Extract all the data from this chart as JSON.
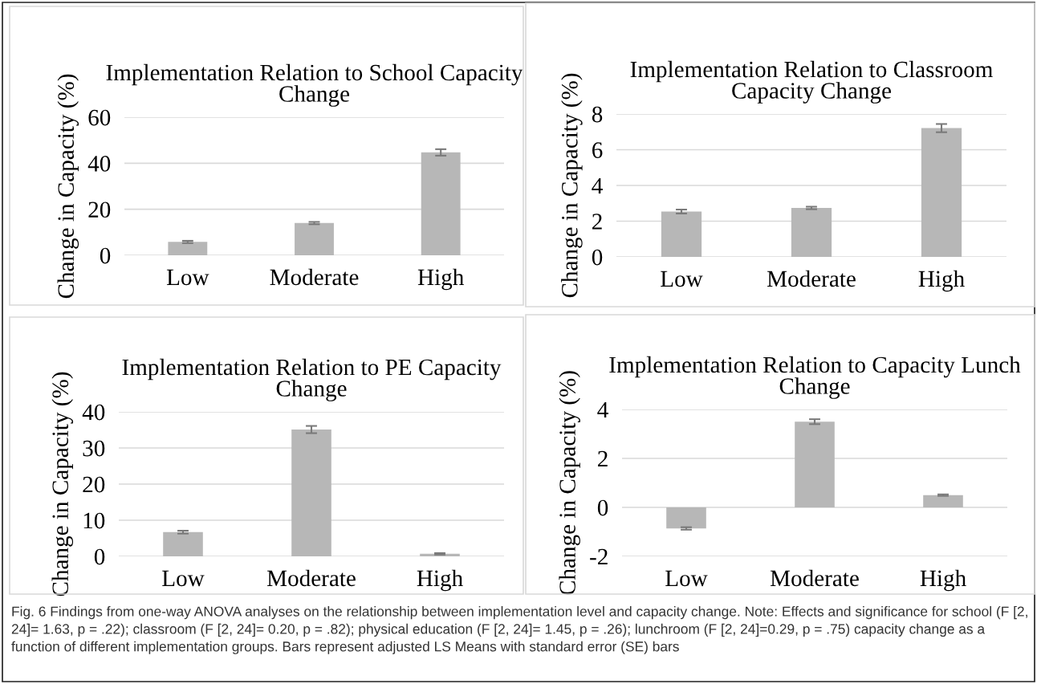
{
  "chart_data": [
    {
      "type": "bar",
      "title": "Implementation Relation to School Capacity Change",
      "ylabel": "Change in Capacity (%)",
      "categories": [
        "Low",
        "Moderate",
        "High"
      ],
      "values": [
        5.8,
        14.0,
        44.7
      ],
      "errors": [
        0.5,
        0.5,
        1.4
      ],
      "color": "#b7b7b7",
      "ylim": [
        0,
        60
      ],
      "yticks": [
        0,
        20,
        40,
        60
      ],
      "grid": "y"
    },
    {
      "type": "bar",
      "title": "Implementation Relation to Classroom Capacity Change",
      "ylabel": "Change in Capacity (%)",
      "categories": [
        "Low",
        "Moderate",
        "High"
      ],
      "values": [
        2.54,
        2.74,
        7.21
      ],
      "errors": [
        0.11,
        0.07,
        0.23
      ],
      "color": "#b7b7b7",
      "ylim": [
        0,
        8
      ],
      "yticks": [
        0,
        2,
        4,
        6,
        8
      ],
      "grid": "y"
    },
    {
      "type": "bar",
      "title": "Implementation Relation to PE Capacity Change",
      "ylabel": "Change in Capacity (%)",
      "categories": [
        "Low",
        "Moderate",
        "High"
      ],
      "values": [
        6.7,
        35.1,
        0.7
      ],
      "errors": [
        0.4,
        1.0,
        0.2
      ],
      "color": "#b7b7b7",
      "ylim": [
        0,
        40
      ],
      "yticks": [
        0,
        10,
        20,
        30,
        40
      ],
      "grid": "y"
    },
    {
      "type": "bar",
      "title": "Implementation Relation to Capacity Lunch Change",
      "ylabel": "Change in Capacity (%)",
      "categories": [
        "Low",
        "Moderate",
        "High"
      ],
      "values": [
        -0.86,
        3.5,
        0.5
      ],
      "errors": [
        0.05,
        0.1,
        0.03
      ],
      "color": "#b7b7b7",
      "ylim": [
        -2,
        4
      ],
      "yticks": [
        {
          "value": -2,
          "label": "-2"
        },
        0,
        2,
        4
      ],
      "grid": "y",
      "annotations": [
        "Fig. 6 Findings from one-way ANOVA analyses on the relationship between implementation level and capacity change. Note: Effects and significance for school (F [2, 24]= 1.63, p = .22); classroom (F [2, 24]= 0.20, p = .82); physical education (F [2, 24]= 1.45, p = .26); lunchroom (F [2, 24]=0.29, p = .75) capacity change as a function of different implementation groups. Bars represent adjusted LS Means with standard error (SE) bars"
      ]
    }
  ]
}
